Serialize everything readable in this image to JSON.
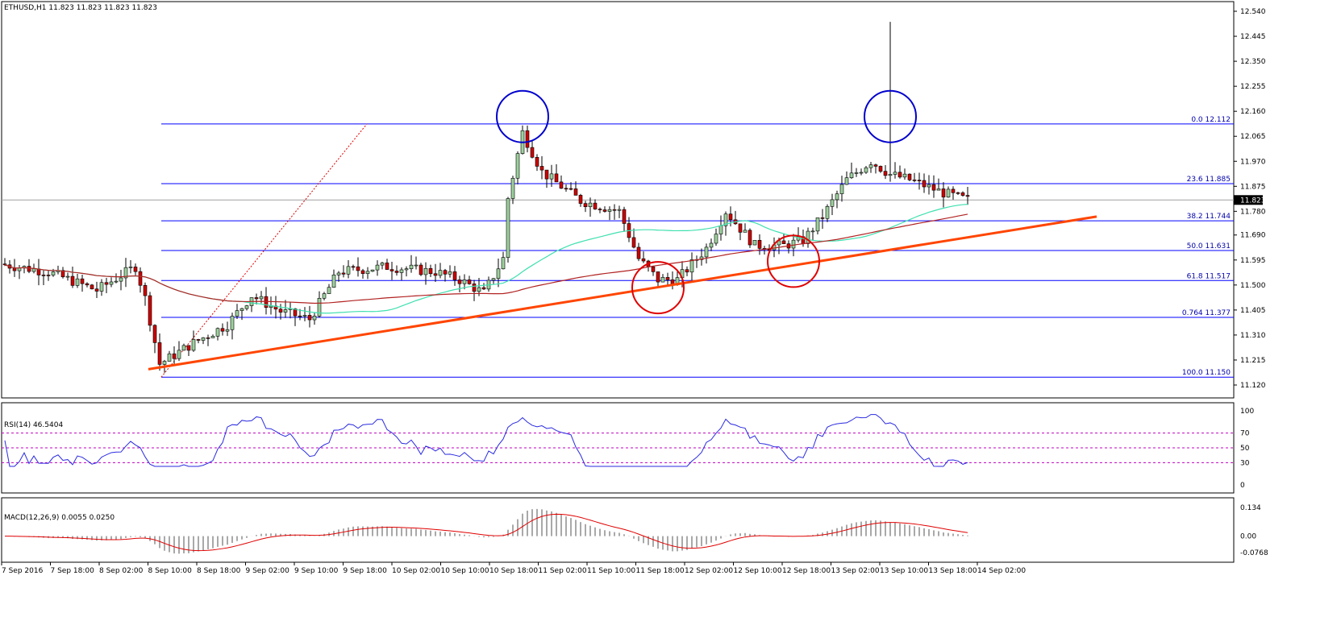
{
  "chart_data": [
    {
      "type": "candlestick",
      "symbol_header": "ETHUSD,H1  11.823 11.823 11.823 11.823",
      "current_price": 11.823,
      "ylim": [
        11.12,
        12.54
      ],
      "y_ticks": [
        "12.540",
        "12.445",
        "12.350",
        "12.255",
        "12.160",
        "12.065",
        "11.970",
        "11.875",
        "11.780",
        "11.690",
        "11.595",
        "11.500",
        "11.405",
        "11.310",
        "11.215",
        "11.120"
      ],
      "fib_levels": [
        {
          "label": "0.0 12.112",
          "value": 12.112
        },
        {
          "label": "23.6 11.885",
          "value": 11.885
        },
        {
          "label": "38.2 11.744",
          "value": 11.744
        },
        {
          "label": "50.0 11.631",
          "value": 11.631
        },
        {
          "label": "61.8 11.517",
          "value": 11.517
        },
        {
          "label": "0.764 11.377",
          "value": 11.377
        },
        {
          "label": "100.0 11.150",
          "value": 11.15
        }
      ],
      "trendline": {
        "from": [
          0,
          11.18
        ],
        "to": [
          1,
          11.76
        ],
        "color": "#ff4500"
      },
      "annotations_circles": [
        {
          "color": "#0000cd",
          "at_price": 12.14,
          "at_candle": 107
        },
        {
          "color": "#0000cd",
          "at_price": 12.14,
          "at_candle": 183
        },
        {
          "color": "#e00000",
          "at_price": 11.49,
          "at_candle": 135
        },
        {
          "color": "#e00000",
          "at_price": 11.59,
          "at_candle": 163
        }
      ],
      "series_colors": {
        "bull": "#9dd09d",
        "bear": "#cc0000",
        "ma_fast": "#40e0b0",
        "ma_slow": "#b22222"
      }
    },
    {
      "type": "line",
      "label": "RSI(14) 46.5404",
      "ylim": [
        0,
        100
      ],
      "y_ticks": [
        "100",
        "70",
        "50",
        "30",
        "0"
      ],
      "levels": [
        70,
        50,
        30
      ],
      "color": "#2a2ae0"
    },
    {
      "type": "histogram+line",
      "label": "MACD(12,26,9) 0.0055 0.0250",
      "y_ticks": [
        "0.134",
        "0.00",
        "-0.0768"
      ],
      "ylim": [
        -0.0768,
        0.134
      ],
      "signal_color": "#e00000",
      "hist_color": "#a9a9a9"
    }
  ],
  "x_labels": [
    "7 Sep 2016",
    "7 Sep 18:00",
    "8 Sep 02:00",
    "8 Sep 10:00",
    "8 Sep 18:00",
    "9 Sep 02:00",
    "9 Sep 10:00",
    "9 Sep 18:00",
    "10 Sep 02:00",
    "10 Sep 10:00",
    "10 Sep 18:00",
    "11 Sep 02:00",
    "11 Sep 10:00",
    "11 Sep 18:00",
    "12 Sep 02:00",
    "12 Sep 10:00",
    "12 Sep 18:00",
    "13 Sep 02:00",
    "13 Sep 10:00",
    "13 Sep 18:00",
    "14 Sep 02:00"
  ]
}
